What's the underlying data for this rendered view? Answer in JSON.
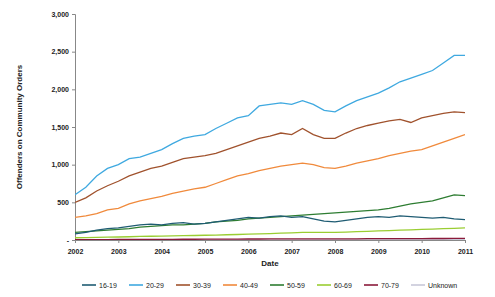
{
  "chart_data": {
    "type": "line",
    "x_label": "Date",
    "y_label": "Offenders on Community Orders",
    "x": [
      2002,
      2002.25,
      2002.5,
      2002.75,
      2003,
      2003.25,
      2003.5,
      2003.75,
      2004,
      2004.25,
      2004.5,
      2004.75,
      2005,
      2005.25,
      2005.5,
      2005.75,
      2006,
      2006.25,
      2006.5,
      2006.75,
      2007,
      2007.25,
      2007.5,
      2007.75,
      2008,
      2008.25,
      2008.5,
      2008.75,
      2009,
      2009.25,
      2009.5,
      2009.75,
      2010,
      2010.25,
      2010.5,
      2010.75,
      2011
    ],
    "xlim": [
      2002,
      2011
    ],
    "xticks": [
      2002,
      2003,
      2004,
      2005,
      2006,
      2007,
      2008,
      2009,
      2010,
      2011
    ],
    "ylim": [
      0,
      3000
    ],
    "yticks": [
      {
        "value": 0,
        "label": "-"
      },
      500,
      {
        "value": 1000,
        "label": "1,000"
      },
      {
        "value": 1500,
        "label": "1,500"
      },
      {
        "value": 2000,
        "label": "2,000"
      },
      {
        "value": 2500,
        "label": "2,500"
      },
      {
        "value": 3000,
        "label": "3,000"
      }
    ],
    "grid": false,
    "legend": "bottom",
    "series": [
      {
        "name": "16-19",
        "color": "#1f5c73",
        "values": [
          80,
          100,
          130,
          150,
          160,
          180,
          200,
          210,
          200,
          220,
          230,
          210,
          220,
          240,
          260,
          280,
          300,
          290,
          310,
          320,
          300,
          310,
          280,
          250,
          240,
          260,
          280,
          300,
          310,
          300,
          320,
          310,
          300,
          290,
          300,
          280,
          270
        ]
      },
      {
        "name": "20-29",
        "color": "#3fa9e0",
        "values": [
          600,
          700,
          850,
          950,
          1000,
          1080,
          1100,
          1150,
          1200,
          1280,
          1350,
          1380,
          1400,
          1480,
          1550,
          1620,
          1650,
          1780,
          1800,
          1820,
          1800,
          1850,
          1800,
          1720,
          1700,
          1780,
          1850,
          1900,
          1950,
          2020,
          2100,
          2150,
          2200,
          2250,
          2350,
          2450,
          2450
        ]
      },
      {
        "name": "30-39",
        "color": "#a0522d",
        "values": [
          500,
          560,
          650,
          720,
          780,
          850,
          900,
          950,
          980,
          1030,
          1080,
          1100,
          1120,
          1150,
          1200,
          1250,
          1300,
          1350,
          1380,
          1420,
          1400,
          1480,
          1400,
          1350,
          1350,
          1420,
          1480,
          1520,
          1550,
          1580,
          1600,
          1560,
          1620,
          1650,
          1680,
          1700,
          1690
        ]
      },
      {
        "name": "40-49",
        "color": "#f08a3c",
        "values": [
          300,
          320,
          350,
          400,
          420,
          480,
          520,
          550,
          580,
          620,
          650,
          680,
          700,
          750,
          800,
          850,
          880,
          920,
          950,
          980,
          1000,
          1020,
          1000,
          960,
          950,
          980,
          1020,
          1050,
          1080,
          1120,
          1150,
          1180,
          1200,
          1250,
          1300,
          1350,
          1400
        ]
      },
      {
        "name": "50-59",
        "color": "#2e7d32",
        "values": [
          100,
          110,
          120,
          130,
          140,
          150,
          170,
          180,
          190,
          200,
          200,
          210,
          220,
          240,
          250,
          260,
          280,
          290,
          300,
          310,
          320,
          330,
          340,
          350,
          360,
          370,
          380,
          390,
          400,
          420,
          450,
          480,
          500,
          520,
          560,
          600,
          590
        ]
      },
      {
        "name": "60-69",
        "color": "#9acd32",
        "values": [
          30,
          32,
          35,
          38,
          40,
          43,
          47,
          50,
          52,
          55,
          58,
          60,
          63,
          66,
          70,
          73,
          77,
          80,
          85,
          90,
          95,
          100,
          100,
          100,
          100,
          105,
          110,
          115,
          120,
          125,
          130,
          135,
          140,
          145,
          150,
          155,
          160
        ]
      },
      {
        "name": "70-79",
        "color": "#8b1a3a",
        "values": [
          5,
          5,
          6,
          6,
          7,
          7,
          8,
          8,
          9,
          9,
          10,
          10,
          11,
          11,
          12,
          12,
          13,
          13,
          14,
          14,
          15,
          15,
          15,
          15,
          15,
          16,
          16,
          17,
          17,
          18,
          18,
          19,
          19,
          20,
          20,
          21,
          21
        ]
      },
      {
        "name": "Unknown",
        "color": "#c8c8d8",
        "values": [
          5,
          5,
          5,
          5,
          5,
          5,
          5,
          5,
          5,
          5,
          5,
          5,
          5,
          5,
          5,
          5,
          5,
          5,
          5,
          5,
          5,
          5,
          5,
          5,
          5,
          5,
          5,
          5,
          5,
          5,
          5,
          5,
          5,
          5,
          5,
          5,
          5
        ]
      }
    ]
  }
}
